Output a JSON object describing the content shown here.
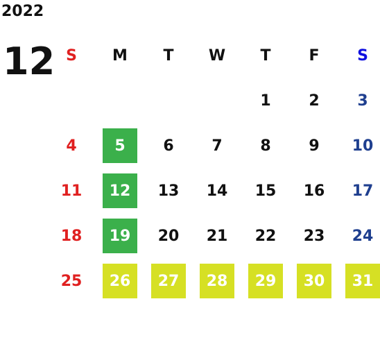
{
  "year": "2022",
  "month": "12",
  "weekdays": [
    "S",
    "M",
    "T",
    "W",
    "T",
    "F",
    "S"
  ],
  "weekday_colors": [
    "#e02020",
    "#111111",
    "#111111",
    "#111111",
    "#111111",
    "#111111",
    "#1010e0"
  ],
  "day_colors": [
    "#e02020",
    "#111111",
    "#111111",
    "#111111",
    "#111111",
    "#111111",
    "#1f3f8f"
  ],
  "highlight_text_color": "#ffffff",
  "weeks": [
    [
      null,
      null,
      null,
      null,
      "1",
      "2",
      "3"
    ],
    [
      "4",
      {
        "day": "5",
        "fill": "#3bb04b"
      },
      "6",
      "7",
      "8",
      "9",
      "10"
    ],
    [
      "11",
      {
        "day": "12",
        "fill": "#3bb04b"
      },
      "13",
      "14",
      "15",
      "16",
      "17"
    ],
    [
      "18",
      {
        "day": "19",
        "fill": "#3bb04b"
      },
      "20",
      "21",
      "22",
      "23",
      "24"
    ],
    [
      "25",
      {
        "day": "26",
        "fill": "#d6e024"
      },
      {
        "day": "27",
        "fill": "#d6e024"
      },
      {
        "day": "28",
        "fill": "#d6e024"
      },
      {
        "day": "29",
        "fill": "#d6e024"
      },
      {
        "day": "30",
        "fill": "#d6e024"
      },
      {
        "day": "31",
        "fill": "#d6e024"
      }
    ]
  ]
}
